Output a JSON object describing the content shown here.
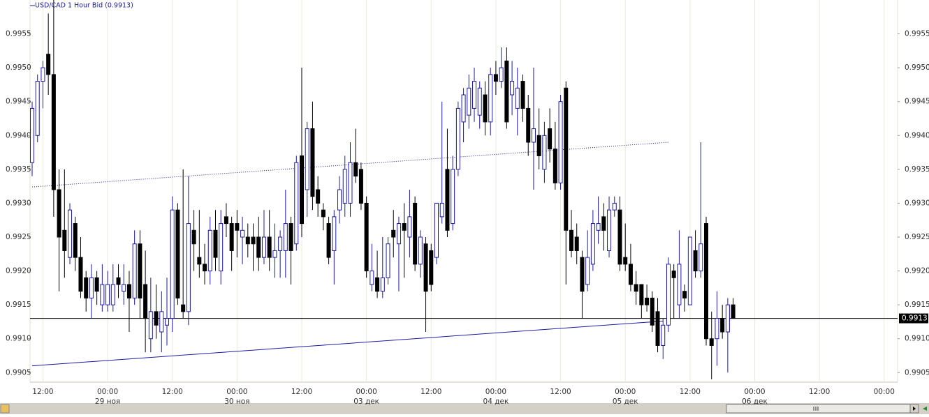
{
  "chart_data": {
    "type": "candlestick",
    "title": "USD/CAD 1 Hour Bid (0.9913)",
    "categories": [
      null,
      null,
      "12:00",
      null,
      null,
      null,
      null,
      null,
      null,
      null,
      null,
      null,
      null,
      null,
      "00:00",
      null,
      null,
      null,
      null,
      null,
      null,
      null,
      null,
      null,
      null,
      null,
      "12:00",
      null,
      null,
      null,
      null,
      null,
      null,
      null,
      null,
      null,
      null,
      null,
      "00:00",
      null,
      null,
      null,
      null,
      null,
      null,
      null,
      null,
      null,
      null,
      null,
      "12:00",
      null,
      null,
      null,
      null,
      null,
      null,
      null,
      null,
      null,
      null,
      null,
      "00:00",
      null,
      null,
      null,
      null,
      null,
      null,
      null,
      null,
      null,
      null,
      null,
      "12:00",
      null,
      null,
      null,
      null,
      null,
      null,
      null,
      null,
      null,
      null,
      null,
      "00:00",
      null,
      null,
      null,
      null,
      null,
      null,
      null,
      null,
      null,
      null,
      null,
      "12:00",
      null,
      null,
      null,
      null,
      null,
      null,
      null,
      null,
      null,
      null,
      null,
      "00:00",
      null,
      null,
      null,
      null,
      null,
      null,
      null,
      null,
      null,
      null,
      null,
      "12:00",
      null,
      null,
      null,
      null,
      null,
      null,
      null,
      null,
      null,
      null,
      null,
      "00:00",
      null,
      null,
      null,
      null,
      null,
      null,
      null,
      null,
      null,
      null,
      null,
      "12:00",
      null,
      null,
      null,
      null,
      null,
      null,
      null,
      null,
      null,
      null,
      null,
      "00:00"
    ],
    "dates": [
      null,
      null,
      null,
      null,
      null,
      null,
      null,
      null,
      null,
      null,
      null,
      null,
      null,
      null,
      "29 ноя",
      null,
      null,
      null,
      null,
      null,
      null,
      null,
      null,
      null,
      null,
      null,
      null,
      null,
      null,
      null,
      null,
      null,
      null,
      null,
      null,
      null,
      null,
      null,
      "30 ноя",
      null,
      null,
      null,
      null,
      null,
      null,
      null,
      null,
      null,
      null,
      null,
      null,
      null,
      null,
      null,
      null,
      null,
      null,
      null,
      null,
      null,
      null,
      null,
      "03 дек",
      null,
      null,
      null,
      null,
      null,
      null,
      null,
      null,
      null,
      null,
      null,
      null,
      null,
      null,
      null,
      null,
      null,
      null,
      null,
      null,
      null,
      null,
      null,
      "04 дек",
      null,
      null,
      null,
      null,
      null,
      null,
      null,
      null,
      null,
      null,
      null,
      null,
      null,
      null,
      null,
      null,
      null,
      null,
      null,
      null,
      null,
      null,
      null,
      "05 дек",
      null,
      null,
      null,
      null,
      null,
      null,
      null,
      null,
      null,
      null,
      null,
      null,
      null,
      null,
      null,
      null,
      null,
      null,
      null,
      null,
      null,
      null,
      null,
      "06 дек",
      null,
      null,
      null,
      null,
      null,
      null,
      null,
      null,
      null,
      null,
      null,
      null,
      null,
      null,
      null,
      null,
      null,
      null,
      null,
      null,
      null,
      null,
      null,
      null
    ],
    "open": [
      0.9936,
      0.994,
      0.9948,
      0.9952,
      0.9949,
      0.9932,
      0.9926,
      0.9922,
      0.9927,
      0.9922,
      0.9919,
      0.9916,
      0.9919,
      0.9915,
      0.9915,
      0.9915,
      0.9919,
      0.9917,
      0.9918,
      0.9916,
      0.9924,
      0.9918,
      0.991,
      0.9914,
      0.9911,
      0.9912,
      0.9913,
      0.9929,
      0.9915,
      0.9914,
      0.9926,
      0.9922,
      0.9921,
      0.992,
      0.9926,
      0.992,
      0.9928,
      0.9927,
      0.9927,
      0.9925,
      0.9925,
      0.9925,
      0.9925,
      0.9922,
      0.9925,
      0.9922,
      0.9923,
      0.9923,
      0.9927,
      0.9924,
      0.9937,
      0.9932,
      0.9941,
      0.9932,
      0.9929,
      0.9927,
      0.9923,
      0.9929,
      0.993,
      0.993,
      0.9936,
      0.9935,
      0.993,
      0.9918,
      0.9919,
      0.9917,
      0.9919,
      0.9926,
      0.9924,
      0.9927,
      0.9925,
      0.993,
      0.9921,
      0.9924,
      0.9923,
      0.9922,
      0.9928,
      0.9935,
      0.9927,
      0.9935,
      0.9942,
      0.9943,
      0.9944,
      0.9943,
      0.9946,
      0.9942,
      0.9949,
      0.9948,
      0.9951,
      0.9946,
      0.9944,
      0.9948,
      0.9944,
      0.9939,
      0.994,
      0.9935,
      0.9941,
      0.9938,
      0.9933,
      0.9947,
      0.9926,
      0.9925,
      0.9922,
      0.9918,
      0.9921,
      0.9926,
      0.9928,
      0.9923,
      0.9929,
      0.9929,
      0.9922,
      0.9921,
      0.9918,
      0.9918,
      0.9916,
      0.9916,
      0.9914,
      0.9909,
      0.9912,
      0.992,
      0.9915,
      0.9917,
      0.9915,
      0.9923,
      0.992,
      0.9927,
      0.991,
      0.991,
      0.9913,
      0.9911,
      0.9915,
      null,
      null,
      null,
      null,
      null,
      null,
      null,
      null,
      null,
      null,
      null,
      null,
      null,
      null,
      null,
      null,
      null,
      null,
      null,
      null,
      null,
      null,
      null,
      null,
      null,
      null,
      null,
      null
    ],
    "high": [
      0.9945,
      0.9949,
      0.9951,
      0.9958,
      0.996,
      0.9935,
      0.9935,
      0.993,
      0.9928,
      0.9925,
      0.992,
      0.9921,
      0.992,
      0.9921,
      0.992,
      0.9921,
      0.9921,
      0.9921,
      0.992,
      0.9926,
      0.9926,
      0.9923,
      0.9919,
      0.9918,
      0.9917,
      0.9919,
      0.9931,
      0.993,
      0.9935,
      0.9934,
      0.9929,
      0.9929,
      0.9924,
      0.9928,
      0.9929,
      0.9929,
      0.993,
      0.9928,
      0.9929,
      0.9928,
      0.9927,
      0.9927,
      0.9928,
      0.9929,
      0.9929,
      0.9927,
      0.9926,
      0.9932,
      0.9928,
      0.9937,
      0.995,
      0.9942,
      0.9945,
      0.9934,
      0.993,
      0.9928,
      0.9929,
      0.9934,
      0.9937,
      0.9939,
      0.9941,
      0.9936,
      0.9931,
      0.9924,
      0.9923,
      0.9925,
      0.9925,
      0.9929,
      0.9928,
      0.993,
      0.9932,
      0.9931,
      0.9926,
      0.9925,
      0.9924,
      0.993,
      0.9945,
      0.9941,
      0.9937,
      0.9945,
      0.9947,
      0.9949,
      0.995,
      0.9948,
      0.9948,
      0.995,
      0.9951,
      0.9953,
      0.9953,
      0.9951,
      0.995,
      0.9949,
      0.9946,
      0.995,
      0.9944,
      0.9942,
      0.9944,
      0.9942,
      0.9946,
      0.9948,
      0.9929,
      0.9927,
      0.9923,
      0.9926,
      0.9929,
      0.9931,
      0.993,
      0.9931,
      0.9931,
      0.9931,
      0.9927,
      0.9924,
      0.992,
      0.9918,
      0.9918,
      0.9917,
      0.9916,
      0.9913,
      0.9922,
      0.9921,
      0.9926,
      0.9918,
      0.9925,
      0.9926,
      0.9939,
      0.9928,
      0.9914,
      0.9917,
      0.9915,
      0.9916,
      0.9916,
      null,
      null,
      null,
      null,
      null,
      null,
      null,
      null,
      null,
      null,
      null,
      null,
      null,
      null,
      null,
      null,
      null,
      null,
      null,
      null,
      null,
      null,
      null,
      null,
      null,
      null,
      null,
      null
    ],
    "low": [
      0.9934,
      0.9939,
      0.9944,
      0.9946,
      0.9928,
      0.9917,
      0.9919,
      0.9921,
      0.992,
      0.9916,
      0.9914,
      0.9913,
      0.9915,
      0.9914,
      0.9914,
      0.9914,
      0.9916,
      0.9915,
      0.9911,
      0.9915,
      0.9913,
      0.9908,
      0.9908,
      0.991,
      0.9908,
      0.9909,
      0.9911,
      0.9915,
      0.9913,
      0.9912,
      0.992,
      0.9919,
      0.9918,
      0.9918,
      0.992,
      0.9918,
      0.9925,
      0.992,
      0.9922,
      0.9921,
      0.9922,
      0.992,
      0.992,
      0.9921,
      0.992,
      0.9919,
      0.9919,
      0.9919,
      0.9918,
      0.9923,
      0.9925,
      0.9928,
      0.9929,
      0.9928,
      0.9926,
      0.9921,
      0.9918,
      0.9927,
      0.9928,
      0.9928,
      0.9933,
      0.9929,
      0.9919,
      0.9917,
      0.9916,
      0.9916,
      0.9918,
      0.9922,
      0.9917,
      0.9919,
      0.9922,
      0.992,
      0.9919,
      0.9911,
      0.9917,
      0.9921,
      0.9927,
      0.9925,
      0.9926,
      0.9934,
      0.9939,
      0.9941,
      0.9942,
      0.9941,
      0.994,
      0.994,
      0.9946,
      0.9947,
      0.9941,
      0.9943,
      0.994,
      0.9942,
      0.9937,
      0.9932,
      0.9935,
      0.9933,
      0.9936,
      0.9932,
      0.9932,
      0.9918,
      0.9922,
      0.9921,
      0.9913,
      0.9917,
      0.992,
      0.9924,
      0.9923,
      0.9922,
      0.9928,
      0.992,
      0.992,
      0.9917,
      0.9915,
      0.9913,
      0.9914,
      0.9911,
      0.9908,
      0.9907,
      0.9911,
      0.9913,
      0.9913,
      0.9914,
      0.9915,
      0.9919,
      0.9919,
      0.9909,
      0.9904,
      0.9906,
      0.991,
      0.9905,
      0.9913,
      null,
      null,
      null,
      null,
      null,
      null,
      null,
      null,
      null,
      null,
      null,
      null,
      null,
      null,
      null,
      null,
      null,
      null,
      null,
      null,
      null,
      null,
      null,
      null,
      null,
      null,
      null,
      null
    ],
    "close": [
      0.9944,
      0.9948,
      0.995,
      0.9949,
      0.9932,
      0.9925,
      0.9923,
      0.9929,
      0.9922,
      0.9917,
      0.9916,
      0.9919,
      0.9917,
      0.9918,
      0.9918,
      0.9918,
      0.9918,
      0.9918,
      0.9916,
      0.9924,
      0.9916,
      0.9913,
      0.9914,
      0.9912,
      0.9914,
      0.9913,
      0.9929,
      0.9916,
      0.9914,
      0.9927,
      0.9924,
      0.9921,
      0.992,
      0.9926,
      0.9922,
      0.9927,
      0.9927,
      0.9923,
      0.9926,
      0.9926,
      0.9924,
      0.9924,
      0.9922,
      0.9925,
      0.9922,
      0.9923,
      0.9925,
      0.9927,
      0.9923,
      0.9936,
      0.9927,
      0.9941,
      0.9931,
      0.993,
      0.9928,
      0.9922,
      0.9928,
      0.9932,
      0.9935,
      0.9936,
      0.9934,
      0.993,
      0.992,
      0.992,
      0.9917,
      0.9919,
      0.9924,
      0.9925,
      0.9927,
      0.9926,
      0.9928,
      0.9921,
      0.9925,
      0.9917,
      0.9918,
      0.993,
      0.993,
      0.9926,
      0.9935,
      0.9944,
      0.9946,
      0.9947,
      0.9948,
      0.9947,
      0.9942,
      0.9949,
      0.9948,
      0.995,
      0.9942,
      0.9948,
      0.9947,
      0.9944,
      0.9939,
      0.9941,
      0.9937,
      0.994,
      0.9938,
      0.9933,
      0.9945,
      0.9926,
      0.9923,
      0.9923,
      0.9917,
      0.9922,
      0.9927,
      0.9927,
      0.9926,
      0.9929,
      0.993,
      0.9921,
      0.9921,
      0.9918,
      0.9917,
      0.9915,
      0.9915,
      0.9912,
      0.9909,
      0.9912,
      0.9921,
      0.9919,
      0.9921,
      0.9916,
      0.9925,
      0.992,
      0.9924,
      0.991,
      0.9909,
      0.9913,
      0.9911,
      0.9915,
      0.9913,
      null,
      null,
      null,
      null,
      null,
      null,
      null,
      null,
      null,
      null,
      null,
      null,
      null,
      null,
      null,
      null,
      null,
      null,
      null,
      null,
      null,
      null,
      null,
      null,
      null,
      null,
      null,
      null
    ],
    "up_color": "#1a1aa6",
    "down_color": "#000000",
    "ylim": [
      0.9904,
      0.996
    ],
    "yticks": [
      0.9905,
      {
        "value": 0.991,
        "label": "0.9910"
      },
      0.9915,
      {
        "value": 0.992,
        "label": "0.9920"
      },
      0.9925,
      {
        "value": 0.993,
        "label": "0.9930"
      },
      0.9935,
      {
        "value": 0.994,
        "label": "0.9940"
      },
      0.9945,
      {
        "value": 0.995,
        "label": "0.9950"
      },
      0.9955
    ],
    "last_price": 0.9913,
    "trendlines": [
      {
        "x": [
          0,
          117
        ],
        "y": [
          0.9906,
          0.99126
        ],
        "color": "#1a1aa6",
        "style": "solid"
      },
      {
        "x": [
          0,
          118
        ],
        "y": [
          0.99324,
          0.9939
        ],
        "color": "#1a1aa6",
        "style": "dotted"
      }
    ]
  }
}
